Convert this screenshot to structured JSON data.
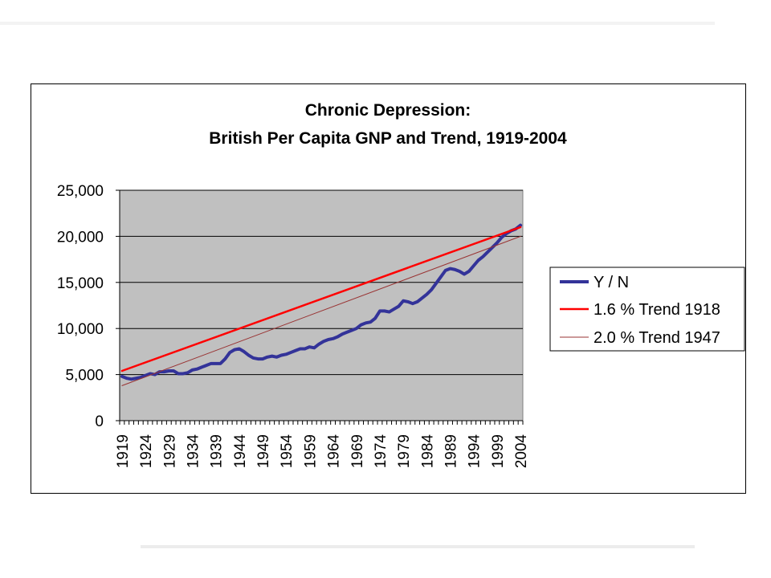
{
  "chart_data": {
    "type": "line",
    "title": "Chronic Depression:",
    "subtitle": "British Per Capita GNP and Trend, 1919-2004",
    "xlabel": "",
    "ylabel": "",
    "ylim": [
      0,
      25000
    ],
    "xlim": [
      1919,
      2004
    ],
    "grid": true,
    "legend_position": "right",
    "y_ticks": [
      "0",
      "5,000",
      "10,000",
      "15,000",
      "20,000",
      "25,000"
    ],
    "y_tick_values": [
      0,
      5000,
      10000,
      15000,
      20000,
      25000
    ],
    "x_ticks": [
      "1919",
      "1924",
      "1929",
      "1934",
      "1939",
      "1944",
      "1949",
      "1954",
      "1959",
      "1964",
      "1969",
      "1974",
      "1979",
      "1984",
      "1989",
      "1994",
      "1999",
      "2004"
    ],
    "plot_background": "#c0c0c0",
    "series": [
      {
        "name": "Y / N",
        "color": "#333399",
        "x": [
          1919,
          1920,
          1921,
          1922,
          1923,
          1924,
          1925,
          1926,
          1927,
          1928,
          1929,
          1930,
          1931,
          1932,
          1933,
          1934,
          1935,
          1936,
          1937,
          1938,
          1939,
          1940,
          1941,
          1942,
          1943,
          1944,
          1945,
          1946,
          1947,
          1948,
          1949,
          1950,
          1951,
          1952,
          1953,
          1954,
          1955,
          1956,
          1957,
          1958,
          1959,
          1960,
          1961,
          1962,
          1963,
          1964,
          1965,
          1966,
          1967,
          1968,
          1969,
          1970,
          1971,
          1972,
          1973,
          1974,
          1975,
          1976,
          1977,
          1978,
          1979,
          1980,
          1981,
          1982,
          1983,
          1984,
          1985,
          1986,
          1987,
          1988,
          1989,
          1990,
          1991,
          1992,
          1993,
          1994,
          1995,
          1996,
          1997,
          1998,
          1999,
          2000,
          2001,
          2002,
          2003,
          2004
        ],
        "values": [
          4800,
          4600,
          4500,
          4600,
          4700,
          4900,
          5100,
          5000,
          5300,
          5300,
          5400,
          5400,
          5100,
          5100,
          5200,
          5500,
          5600,
          5800,
          6000,
          6200,
          6200,
          6200,
          6700,
          7400,
          7700,
          7800,
          7500,
          7100,
          6800,
          6700,
          6700,
          6900,
          7000,
          6900,
          7100,
          7200,
          7400,
          7600,
          7800,
          7800,
          8000,
          7900,
          8300,
          8600,
          8800,
          8900,
          9100,
          9400,
          9600,
          9800,
          10000,
          10400,
          10600,
          10700,
          11100,
          11900,
          11900,
          11800,
          12100,
          12400,
          13000,
          12900,
          12700,
          12900,
          13300,
          13700,
          14200,
          14900,
          15600,
          16300,
          16500,
          16400,
          16200,
          15900,
          16200,
          16800,
          17400,
          17800,
          18300,
          18800,
          19300,
          19900,
          20300,
          20600,
          20800,
          21200
        ]
      },
      {
        "name": "1.6 % Trend 1918",
        "color": "#ff0000",
        "x": [
          1919,
          2004
        ],
        "values": [
          5400,
          21000
        ]
      },
      {
        "name": "2.0 % Trend 1947",
        "color": "#993333",
        "x": [
          1919,
          2004
        ],
        "values": [
          3800,
          20000
        ]
      }
    ]
  }
}
